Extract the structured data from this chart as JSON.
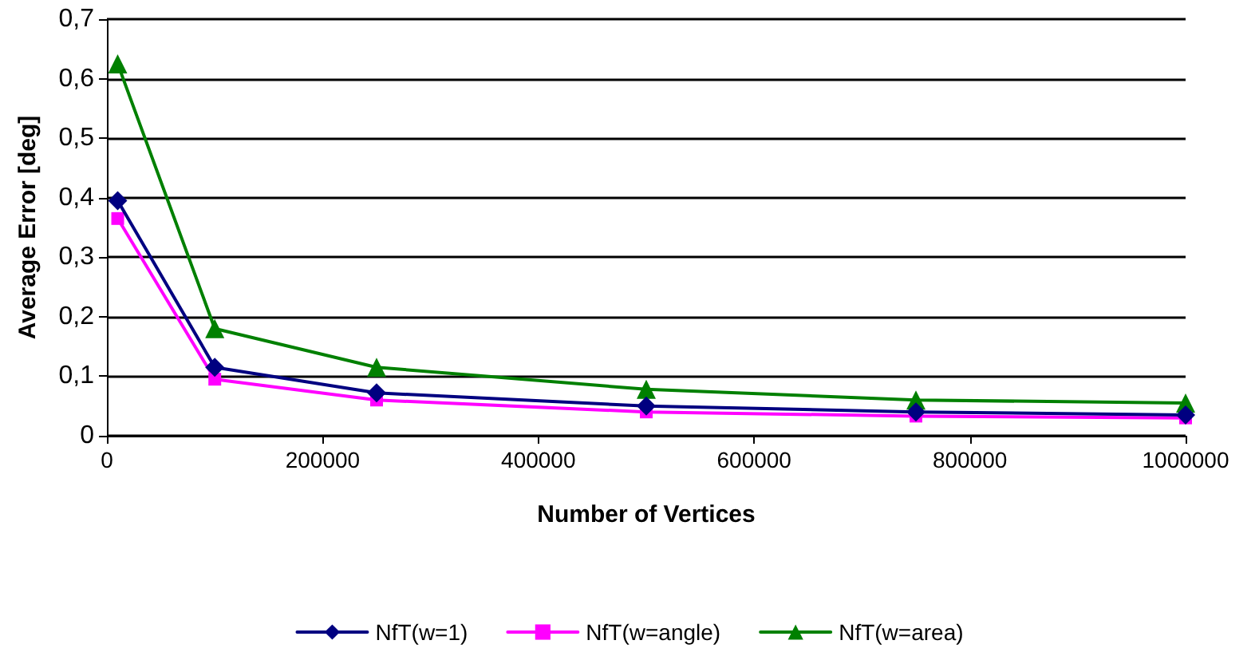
{
  "chart_data": {
    "type": "line",
    "xlabel": "Number of Vertices",
    "ylabel": "Average Error [deg]",
    "x": [
      10000,
      100000,
      250000,
      500000,
      750000,
      1000000
    ],
    "series": [
      {
        "name": "NfT(w=1)",
        "color": "#000080",
        "marker": "diamond",
        "values": [
          0.395,
          0.115,
          0.072,
          0.05,
          0.04,
          0.035
        ]
      },
      {
        "name": "NfT(w=angle)",
        "color": "#ff00ff",
        "marker": "square",
        "values": [
          0.365,
          0.095,
          0.06,
          0.04,
          0.033,
          0.03
        ]
      },
      {
        "name": "NfT(w=area)",
        "color": "#008000",
        "marker": "triangle",
        "values": [
          0.625,
          0.18,
          0.115,
          0.078,
          0.06,
          0.055
        ]
      }
    ],
    "xlim": [
      0,
      1000000
    ],
    "xticks": [
      0,
      200000,
      400000,
      600000,
      800000,
      1000000
    ],
    "ylim": [
      0,
      0.7
    ],
    "yticks": [
      0,
      {
        "value": 0.1,
        "label": "0,1"
      },
      {
        "value": 0.2,
        "label": "0,2"
      },
      {
        "value": 0.3,
        "label": "0,3"
      },
      {
        "value": 0.4,
        "label": "0,4"
      },
      {
        "value": 0.5,
        "label": "0,5"
      },
      {
        "value": 0.6,
        "label": "0,6"
      },
      {
        "value": 0.7,
        "label": "0,7"
      }
    ],
    "grid": "y",
    "legend": "bottom",
    "line_style": "solid"
  }
}
